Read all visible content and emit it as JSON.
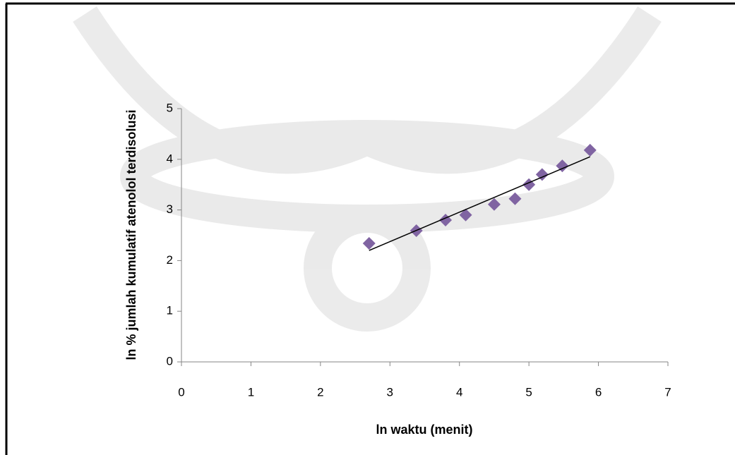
{
  "chart_data": {
    "type": "scatter",
    "x_label": "ln waktu (menit)",
    "y_label": "ln % jumlah kumulatif atenolol terdisolusi",
    "series": [
      {
        "color": "#8064a2",
        "x": [
          2.7,
          3.38,
          3.8,
          4.09,
          4.5,
          4.8,
          5.0,
          5.19,
          5.48,
          5.88
        ],
        "values": [
          2.34,
          2.59,
          2.8,
          2.9,
          3.11,
          3.22,
          3.5,
          3.7,
          3.87,
          4.18
        ]
      }
    ],
    "trendline": {
      "color": "#000000",
      "x": [
        2.7,
        5.88
      ],
      "values": [
        2.2,
        4.05
      ]
    },
    "xlim": [
      0,
      7
    ],
    "xticks": [
      0,
      1,
      2,
      3,
      4,
      5,
      6,
      7
    ],
    "ylim": [
      0,
      5
    ],
    "yticks": [
      0,
      1,
      2,
      3,
      4,
      5
    ],
    "grid": false
  }
}
